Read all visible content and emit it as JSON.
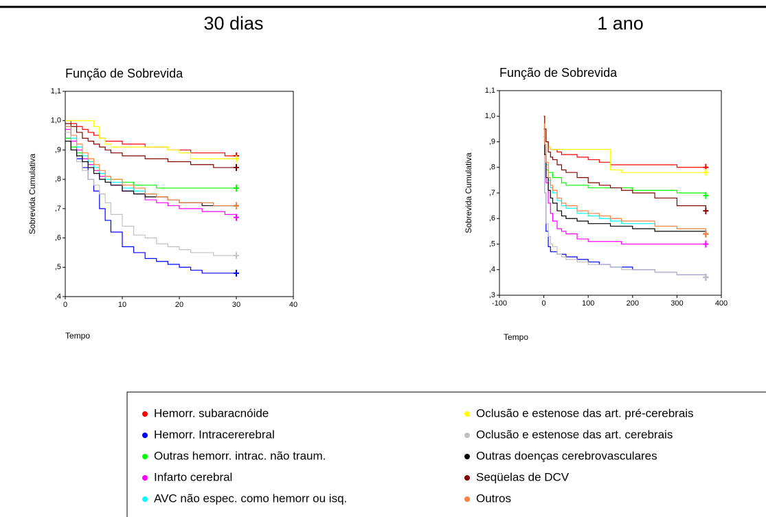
{
  "chart_data": [
    {
      "type": "line",
      "step": true,
      "heading": "30 dias",
      "title": "Função de Sobrevida",
      "y_label": "Sobrevida Cumulativa",
      "x_label": "Tempo",
      "xlim": [
        0,
        40
      ],
      "xticks": [
        0,
        10,
        20,
        30,
        40
      ],
      "ylim": [
        0.4,
        1.1
      ],
      "yticks": [
        {
          "value": 0.4,
          "label": ",4"
        },
        {
          "value": 0.5,
          "label": ",5"
        },
        {
          "value": 0.6,
          "label": ",6"
        },
        {
          "value": 0.7,
          "label": ",7"
        },
        {
          "value": 0.8,
          "label": ",8"
        },
        {
          "value": 0.9,
          "label": ",9"
        },
        {
          "value": 1.0,
          "label": "1,0"
        },
        {
          "value": 1.1,
          "label": "1,1"
        }
      ],
      "x": [
        0,
        1,
        2,
        3,
        4,
        5,
        6,
        7,
        8,
        10,
        12,
        14,
        16,
        18,
        20,
        22,
        24,
        26,
        28,
        30
      ],
      "series": [
        {
          "name": "Hemorr. subaracnóide",
          "color": "#ff0000",
          "values": [
            1.0,
            0.99,
            0.98,
            0.97,
            0.96,
            0.95,
            0.94,
            0.93,
            0.93,
            0.92,
            0.92,
            0.91,
            0.91,
            0.9,
            0.9,
            0.89,
            0.89,
            0.89,
            0.88,
            0.88
          ]
        },
        {
          "name": "Hemorr. Intracererebral",
          "color": "#0000ff",
          "values": [
            0.94,
            0.9,
            0.87,
            0.84,
            0.8,
            0.76,
            0.7,
            0.66,
            0.62,
            0.57,
            0.55,
            0.53,
            0.52,
            0.51,
            0.5,
            0.49,
            0.48,
            0.48,
            0.48,
            0.48
          ]
        },
        {
          "name": "Outras hemorr. intrac. não traum.",
          "color": "#00ff00",
          "values": [
            0.94,
            0.91,
            0.89,
            0.87,
            0.85,
            0.83,
            0.82,
            0.81,
            0.8,
            0.79,
            0.78,
            0.78,
            0.77,
            0.77,
            0.77,
            0.77,
            0.77,
            0.77,
            0.77,
            0.77
          ]
        },
        {
          "name": "Infarto cerebral",
          "color": "#ff00ff",
          "values": [
            0.97,
            0.93,
            0.9,
            0.87,
            0.85,
            0.83,
            0.81,
            0.79,
            0.78,
            0.76,
            0.75,
            0.73,
            0.72,
            0.71,
            0.7,
            0.7,
            0.69,
            0.69,
            0.68,
            0.67
          ]
        },
        {
          "name": "AVC não espec. como hemorr ou isq.",
          "color": "#00ffff",
          "values": [
            0.98,
            0.94,
            0.91,
            0.88,
            0.86,
            0.84,
            0.82,
            0.8,
            0.79,
            0.77,
            0.76,
            0.75,
            0.74,
            0.73,
            0.72,
            0.72,
            0.72,
            0.71,
            0.71,
            0.71
          ]
        },
        {
          "name": "Oclusão e estenose das art. pré-cerebrais",
          "color": "#ffff00",
          "values": [
            1.0,
            1.0,
            1.0,
            1.0,
            1.0,
            0.98,
            0.94,
            0.92,
            0.91,
            0.91,
            0.91,
            0.91,
            0.91,
            0.9,
            0.89,
            0.87,
            0.87,
            0.87,
            0.87,
            0.87
          ]
        },
        {
          "name": "Oclusão e estenose das art. cerebrais",
          "color": "#c0c0c0",
          "values": [
            0.96,
            0.9,
            0.86,
            0.83,
            0.8,
            0.78,
            0.75,
            0.72,
            0.68,
            0.64,
            0.61,
            0.6,
            0.58,
            0.57,
            0.56,
            0.55,
            0.55,
            0.54,
            0.54,
            0.54
          ]
        },
        {
          "name": "Outras doenças cerebrovasculares",
          "color": "#000000",
          "values": [
            0.93,
            0.9,
            0.88,
            0.86,
            0.84,
            0.82,
            0.8,
            0.79,
            0.78,
            0.76,
            0.75,
            0.74,
            0.74,
            0.73,
            0.72,
            0.72,
            0.71,
            0.71,
            0.71,
            0.71
          ]
        },
        {
          "name": "Seqüelas de DCV",
          "color": "#800000",
          "values": [
            0.99,
            0.98,
            0.96,
            0.94,
            0.93,
            0.92,
            0.91,
            0.9,
            0.89,
            0.88,
            0.88,
            0.87,
            0.87,
            0.86,
            0.86,
            0.85,
            0.85,
            0.84,
            0.84,
            0.84
          ]
        },
        {
          "name": "Outros",
          "color": "#ff8040",
          "values": [
            0.98,
            0.95,
            0.92,
            0.89,
            0.87,
            0.85,
            0.83,
            0.81,
            0.8,
            0.78,
            0.77,
            0.75,
            0.74,
            0.73,
            0.72,
            0.72,
            0.72,
            0.71,
            0.71,
            0.71
          ]
        }
      ]
    },
    {
      "type": "line",
      "step": true,
      "heading": "1 ano",
      "title": "Função de Sobrevida",
      "y_label": "Sobrevida Cumulativa",
      "x_label": "Tempo",
      "xlim": [
        -100,
        400
      ],
      "xticks": [
        -100,
        0,
        100,
        200,
        300,
        400
      ],
      "ylim": [
        0.3,
        1.1
      ],
      "yticks": [
        {
          "value": 0.3,
          "label": ",3"
        },
        {
          "value": 0.4,
          "label": ",4"
        },
        {
          "value": 0.5,
          "label": ",5"
        },
        {
          "value": 0.6,
          "label": ",6"
        },
        {
          "value": 0.7,
          "label": ",7"
        },
        {
          "value": 0.8,
          "label": ",8"
        },
        {
          "value": 0.9,
          "label": ",9"
        },
        {
          "value": 1.0,
          "label": "1,0"
        },
        {
          "value": 1.1,
          "label": "1,1"
        }
      ],
      "x": [
        0,
        2,
        5,
        10,
        15,
        20,
        30,
        40,
        50,
        75,
        100,
        125,
        150,
        175,
        200,
        250,
        300,
        365
      ],
      "series": [
        {
          "color": "#ff0000",
          "values": [
            1.0,
            0.95,
            0.9,
            0.88,
            0.87,
            0.87,
            0.86,
            0.85,
            0.85,
            0.84,
            0.83,
            0.82,
            0.81,
            0.81,
            0.81,
            0.81,
            0.8,
            0.8
          ]
        },
        {
          "color": "#0000ff",
          "values": [
            0.92,
            0.7,
            0.55,
            0.49,
            0.47,
            0.47,
            0.46,
            0.46,
            0.45,
            0.44,
            0.43,
            0.42,
            0.41,
            0.41,
            0.4,
            0.39,
            0.38,
            0.37
          ]
        },
        {
          "color": "#00ff00",
          "values": [
            0.95,
            0.85,
            0.79,
            0.78,
            0.78,
            0.76,
            0.76,
            0.74,
            0.73,
            0.73,
            0.72,
            0.72,
            0.72,
            0.72,
            0.71,
            0.71,
            0.7,
            0.69
          ]
        },
        {
          "color": "#ff00ff",
          "values": [
            0.96,
            0.85,
            0.74,
            0.66,
            0.62,
            0.59,
            0.56,
            0.55,
            0.54,
            0.52,
            0.51,
            0.51,
            0.51,
            0.5,
            0.5,
            0.5,
            0.5,
            0.5
          ]
        },
        {
          "color": "#00ffff",
          "values": [
            0.97,
            0.89,
            0.81,
            0.75,
            0.72,
            0.7,
            0.67,
            0.65,
            0.64,
            0.62,
            0.61,
            0.6,
            0.59,
            0.58,
            0.58,
            0.57,
            0.56,
            0.54
          ]
        },
        {
          "color": "#ffff00",
          "values": [
            1.0,
            0.95,
            0.9,
            0.88,
            0.87,
            0.87,
            0.87,
            0.87,
            0.87,
            0.87,
            0.87,
            0.87,
            0.79,
            0.78,
            0.78,
            0.78,
            0.78,
            0.78
          ]
        },
        {
          "color": "#c0c0c0",
          "values": [
            0.93,
            0.7,
            0.58,
            0.53,
            0.5,
            0.49,
            0.46,
            0.45,
            0.44,
            0.43,
            0.42,
            0.42,
            0.41,
            0.4,
            0.4,
            0.39,
            0.38,
            0.37
          ]
        },
        {
          "color": "#000000",
          "values": [
            0.95,
            0.85,
            0.76,
            0.71,
            0.68,
            0.66,
            0.63,
            0.61,
            0.6,
            0.59,
            0.58,
            0.58,
            0.57,
            0.57,
            0.56,
            0.55,
            0.55,
            0.54
          ]
        },
        {
          "color": "#800000",
          "values": [
            1.0,
            0.95,
            0.9,
            0.86,
            0.84,
            0.83,
            0.81,
            0.79,
            0.78,
            0.76,
            0.74,
            0.73,
            0.72,
            0.71,
            0.7,
            0.68,
            0.65,
            0.63
          ]
        },
        {
          "color": "#ff8040",
          "values": [
            0.97,
            0.89,
            0.82,
            0.76,
            0.73,
            0.71,
            0.68,
            0.66,
            0.65,
            0.63,
            0.62,
            0.61,
            0.6,
            0.59,
            0.59,
            0.57,
            0.56,
            0.54
          ]
        }
      ]
    }
  ]
}
